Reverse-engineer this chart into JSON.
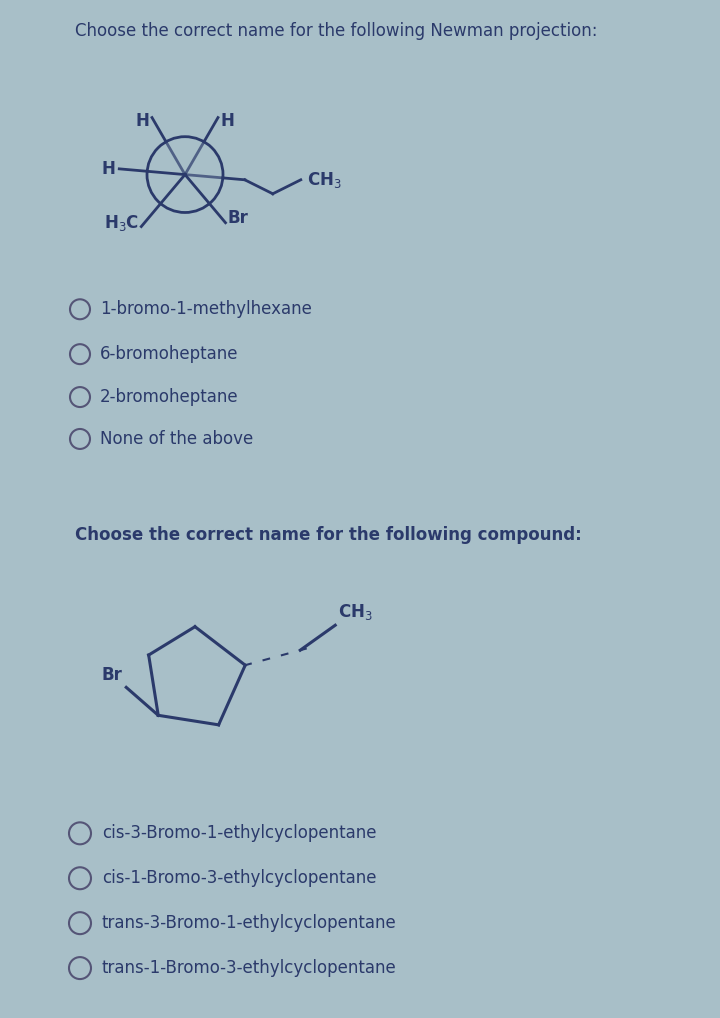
{
  "panel1_bg": "#c2d4de",
  "panel2_bg": "#9ec4cf",
  "outer_bg": "#a8bfc8",
  "text_color": "#2b3a6b",
  "bond_color": "#2b3a6b",
  "title1": "Choose the correct name for the following Newman projection:",
  "title2": "Choose the correct name for the following compound:",
  "q1_options": [
    "1-bromo-1-methylhexane",
    "6-bromoheptane",
    "2-bromoheptane",
    "None of the above"
  ],
  "q2_options": [
    "cis-3-Bromo-1-ethylcyclopentane",
    "cis-1-Bromo-3-ethylcyclopentane",
    "trans-3-Bromo-1-ethylcyclopentane",
    "trans-1-Bromo-3-ethylcyclopentane"
  ],
  "title_fontsize": 12,
  "option_fontsize": 12
}
